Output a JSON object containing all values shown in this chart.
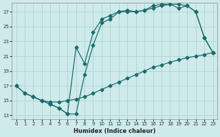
{
  "xlabel": "Humidex (Indice chaleur)",
  "bg_color": "#ceeaea",
  "grid_color": "#aacece",
  "line_color": "#1a6b6b",
  "xlim": [
    -0.5,
    23.5
  ],
  "ylim": [
    12.5,
    28.2
  ],
  "xticks": [
    0,
    1,
    2,
    3,
    4,
    5,
    6,
    7,
    8,
    9,
    10,
    11,
    12,
    13,
    14,
    15,
    16,
    17,
    18,
    19,
    20,
    21,
    22,
    23
  ],
  "yticks": [
    13,
    15,
    17,
    19,
    21,
    23,
    25,
    27
  ],
  "line1_x": [
    0,
    1,
    2,
    3,
    4,
    5,
    6,
    7,
    8,
    9,
    10,
    11,
    12,
    13,
    14,
    15,
    16,
    17,
    18,
    19,
    20,
    21,
    22,
    23
  ],
  "line1_y": [
    17.0,
    16.0,
    15.5,
    15.0,
    14.8,
    14.8,
    15.0,
    15.2,
    15.5,
    16.0,
    16.5,
    17.0,
    17.5,
    18.0,
    18.5,
    19.0,
    19.5,
    19.8,
    20.2,
    20.5,
    20.8,
    21.0,
    21.2,
    21.5
  ],
  "line2_x": [
    0,
    1,
    2,
    3,
    4,
    5,
    6,
    7,
    8,
    9,
    10,
    11,
    12,
    13,
    14,
    15,
    16,
    17,
    18,
    19,
    20,
    21,
    22,
    23
  ],
  "line2_y": [
    17.0,
    16.0,
    15.5,
    15.0,
    14.5,
    14.0,
    13.2,
    13.2,
    18.5,
    22.5,
    25.5,
    26.0,
    27.0,
    27.0,
    27.0,
    27.2,
    27.5,
    27.8,
    28.0,
    28.0,
    27.8,
    27.0,
    23.5,
    21.5
  ],
  "line3_x": [
    2,
    3,
    4,
    5,
    6,
    7,
    8,
    9,
    10,
    11,
    12,
    13,
    14,
    15,
    16,
    17,
    18,
    19,
    20,
    21,
    22,
    23
  ],
  "line3_y": [
    15.5,
    15.0,
    14.5,
    14.0,
    13.2,
    22.2,
    20.0,
    24.2,
    26.0,
    26.5,
    27.0,
    27.2,
    27.0,
    27.2,
    27.8,
    28.0,
    28.0,
    27.5,
    27.8,
    27.0,
    23.5,
    21.5
  ]
}
